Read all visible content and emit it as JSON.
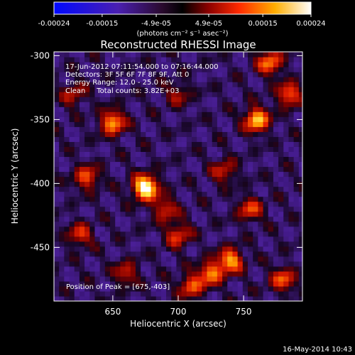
{
  "chart_data": {
    "type": "heatmap",
    "title": "Reconstructed RHESSI Image",
    "xlabel": "Heliocentric X (arcsec)",
    "ylabel": "Heliocentric Y (arcsec)",
    "xlim": [
      605,
      795
    ],
    "ylim": [
      -492,
      -297
    ],
    "x_ticks": [
      650,
      700,
      750
    ],
    "y_ticks": [
      -300,
      -350,
      -400,
      -450
    ],
    "colorbar": {
      "ticks": [
        -0.00024,
        -0.00015,
        -4.9e-05,
        4.9e-05,
        0.00015,
        0.00024
      ],
      "tick_labels": [
        "-0.00024",
        "-0.00015",
        "-4.9e-05",
        "4.9e-05",
        "0.00015",
        "0.00024"
      ],
      "range": [
        -0.00024,
        0.00024
      ],
      "colormap": "blue-purple-red-yellow-white",
      "units_label": "(photons cm⁻² s⁻¹ asec⁻²)"
    },
    "annotations": [
      "17-Jun-2012 07:11:54.000 to 07:16:44.000",
      "Detectors: 3F 5F 6F 7F 8F 9F, Att 0",
      "Energy Range: 12.0 - 25.0 keV",
      "Clean     Total counts: 3.82E+03"
    ],
    "peak_label": "Position of Peak = [675,-403]",
    "peak_position": [
      675,
      -403
    ],
    "bright_sources": [
      {
        "x": 675,
        "y": -403,
        "value": 0.00024
      },
      {
        "x": 650,
        "y": -352,
        "value": 0.00016
      },
      {
        "x": 760,
        "y": -350,
        "value": 0.00018
      },
      {
        "x": 630,
        "y": -395,
        "value": 0.00012
      },
      {
        "x": 770,
        "y": -305,
        "value": 0.00014
      },
      {
        "x": 785,
        "y": -330,
        "value": 0.00013
      },
      {
        "x": 740,
        "y": -460,
        "value": 0.00016
      },
      {
        "x": 725,
        "y": -470,
        "value": 0.00014
      },
      {
        "x": 710,
        "y": -480,
        "value": 0.00012
      },
      {
        "x": 700,
        "y": -440,
        "value": 0.00011
      },
      {
        "x": 690,
        "y": -420,
        "value": 0.0001
      },
      {
        "x": 755,
        "y": -420,
        "value": 0.00011
      },
      {
        "x": 625,
        "y": -440,
        "value": 0.0001
      },
      {
        "x": 660,
        "y": -470,
        "value": 9e-05
      },
      {
        "x": 780,
        "y": -475,
        "value": 0.00012
      },
      {
        "x": 620,
        "y": -330,
        "value": 8e-05
      },
      {
        "x": 700,
        "y": -330,
        "value": 7e-05
      },
      {
        "x": 735,
        "y": -390,
        "value": 9e-05
      }
    ]
  },
  "footer": {
    "timestamp": "16-May-2014 10:43"
  }
}
